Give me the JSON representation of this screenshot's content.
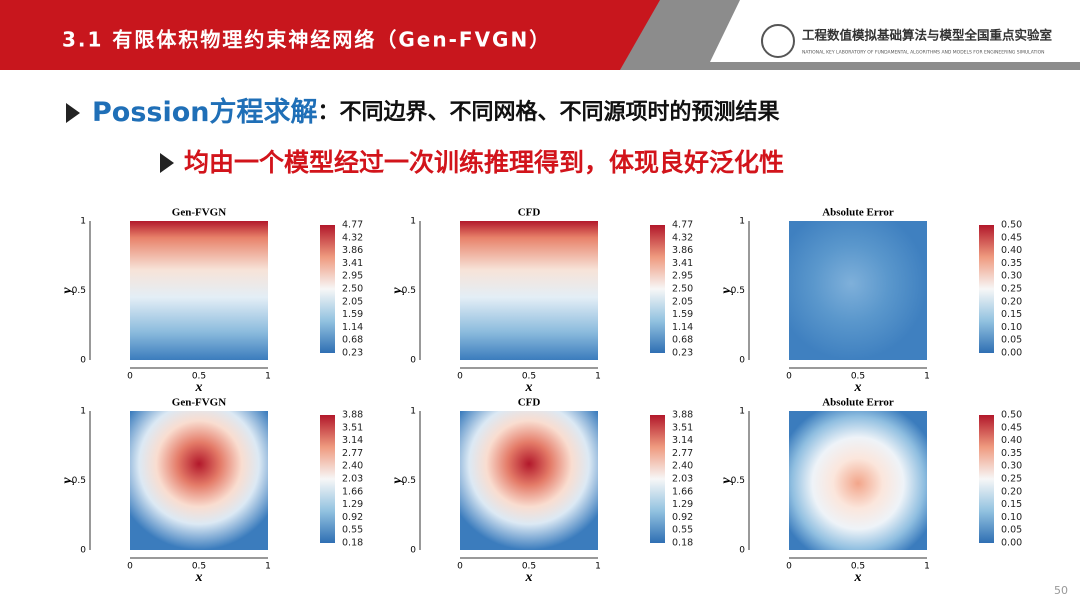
{
  "header": {
    "section": "3.1 有限体积物理约束神经网络（Gen-FVGN）",
    "lab_name": "工程数值模拟基础算法与模型全国重点实验室",
    "lab_name_en": "NATIONAL KEY LABORATORY OF FUNDAMENTAL ALGORITHMS AND MODELS FOR ENGINEERING SIMULATION"
  },
  "headline": {
    "key": "Possion方程求解",
    "rest": "：不同边界、不同网格、不同源项时的预测结果"
  },
  "subline": "均由一个模型经过一次训练推理得到，体现良好泛化性",
  "axes": {
    "xlabel": "x",
    "ylabel": "y",
    "ticks": [
      "0",
      "0.5",
      "1"
    ]
  },
  "panels": [
    {
      "title": "Gen-FVGN",
      "field": "top",
      "colorbar": [
        "4.77",
        "4.32",
        "3.86",
        "3.41",
        "2.95",
        "2.50",
        "2.05",
        "1.59",
        "1.14",
        "0.68",
        "0.23"
      ]
    },
    {
      "title": "CFD",
      "field": "top",
      "colorbar": [
        "4.77",
        "4.32",
        "3.86",
        "3.41",
        "2.95",
        "2.50",
        "2.05",
        "1.59",
        "1.14",
        "0.68",
        "0.23"
      ]
    },
    {
      "title": "Absolute Error",
      "field": "err1",
      "colorbar": [
        "0.50",
        "0.45",
        "0.40",
        "0.35",
        "0.30",
        "0.25",
        "0.20",
        "0.15",
        "0.10",
        "0.05",
        "0.00"
      ]
    },
    {
      "title": "Gen-FVGN",
      "field": "center",
      "colorbar": [
        "3.88",
        "3.51",
        "3.14",
        "2.77",
        "2.40",
        "2.03",
        "1.66",
        "1.29",
        "0.92",
        "0.55",
        "0.18"
      ]
    },
    {
      "title": "CFD",
      "field": "center",
      "colorbar": [
        "3.88",
        "3.51",
        "3.14",
        "2.77",
        "2.40",
        "2.03",
        "1.66",
        "1.29",
        "0.92",
        "0.55",
        "0.18"
      ]
    },
    {
      "title": "Absolute Error",
      "field": "err2",
      "colorbar": [
        "0.50",
        "0.45",
        "0.40",
        "0.35",
        "0.30",
        "0.25",
        "0.20",
        "0.15",
        "0.10",
        "0.05",
        "0.00"
      ]
    }
  ],
  "page_number": "50"
}
